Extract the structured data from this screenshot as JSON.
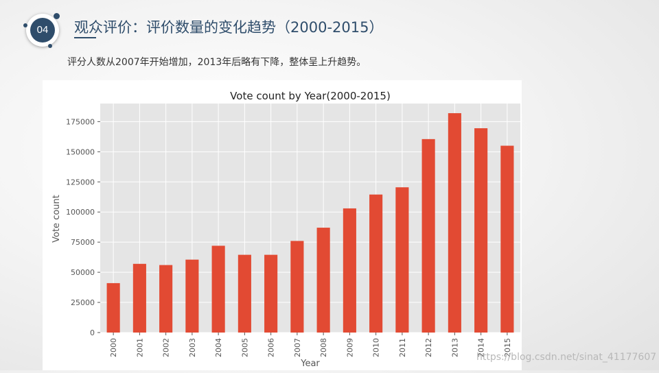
{
  "badge": {
    "number": "04"
  },
  "header": {
    "title": "观众评价：评价数量的变化趋势（2000-2015）",
    "subtitle": "评分人数从2007年开始增加，2013年后略有下降，整体呈上升趋势。"
  },
  "watermark": "https://blog.csdn.net/sinat_41177607",
  "colors": {
    "accent": "#2f4d6b",
    "bar": "#e24a33",
    "plot_bg": "#e5e5e5"
  },
  "chart_data": {
    "type": "bar",
    "title": "Vote count by Year(2000-2015)",
    "xlabel": "Year",
    "ylabel": "Vote count",
    "categories": [
      "2000",
      "2001",
      "2002",
      "2003",
      "2004",
      "2005",
      "2006",
      "2007",
      "2008",
      "2009",
      "2010",
      "2011",
      "2012",
      "2013",
      "2014",
      "2015"
    ],
    "values": [
      41000,
      57000,
      56000,
      60500,
      72000,
      64500,
      64500,
      76000,
      87000,
      103000,
      114500,
      120500,
      160500,
      182000,
      169500,
      155000
    ],
    "ylim": [
      0,
      190000
    ],
    "yticks": [
      0,
      25000,
      50000,
      75000,
      100000,
      125000,
      150000,
      175000
    ],
    "grid": true,
    "legend": "none"
  }
}
